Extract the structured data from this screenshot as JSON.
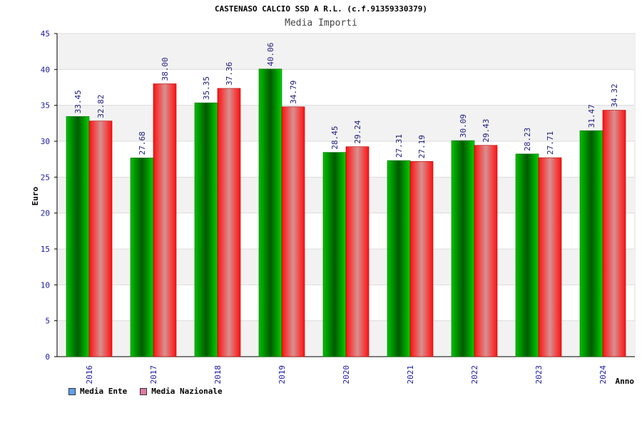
{
  "chart_data": {
    "type": "bar",
    "title": "CASTENASO CALCIO SSD A R.L. (c.f.91359330379)",
    "subtitle": "Media Importi",
    "xlabel": "Anno",
    "ylabel": "Euro",
    "ylim": [
      0,
      45
    ],
    "yticks": [
      "0",
      "5",
      "10",
      "15",
      "20",
      "25",
      "30",
      "35",
      "40",
      "45"
    ],
    "grid": true,
    "legend_position": "bottom-left",
    "categories": [
      "2016",
      "2017",
      "2018",
      "2019",
      "2020",
      "2021",
      "2022",
      "2023",
      "2024"
    ],
    "series": [
      {
        "name": "Media Ente",
        "values": [
          33.45,
          27.68,
          35.35,
          40.06,
          28.45,
          27.31,
          30.09,
          28.23,
          31.47
        ],
        "labels": [
          "33.45",
          "27.68",
          "35.35",
          "40.06",
          "28.45",
          "27.31",
          "30.09",
          "28.23",
          "31.47"
        ],
        "color": "#00a000",
        "legend_color": "#5fa0ef"
      },
      {
        "name": "Media Nazionale",
        "values": [
          32.82,
          38.0,
          37.36,
          34.79,
          29.24,
          27.19,
          29.43,
          27.71,
          34.32
        ],
        "labels": [
          "32.82",
          "38.00",
          "37.36",
          "34.79",
          "29.24",
          "27.19",
          "29.43",
          "27.71",
          "34.32"
        ],
        "color": "#e01010",
        "legend_color": "#e07aa8"
      }
    ]
  }
}
